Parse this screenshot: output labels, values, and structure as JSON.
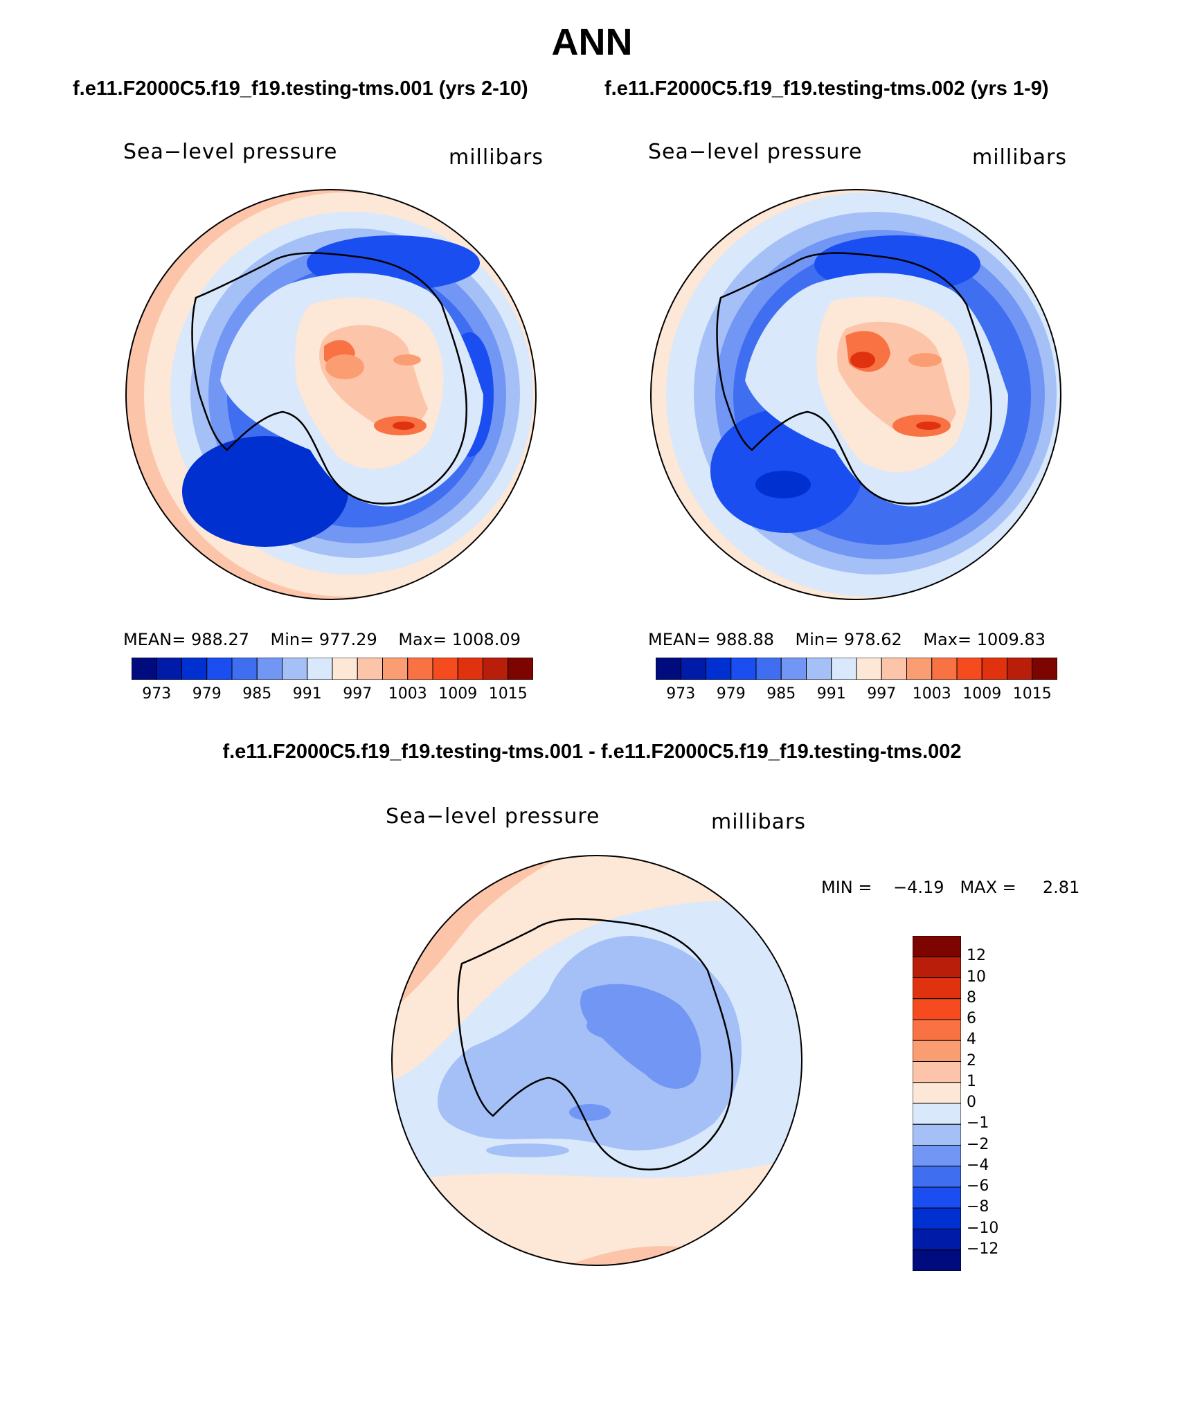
{
  "page_title": "ANN",
  "panel_a": {
    "case": "f.e11.F2000C5.f19_f19.testing-tms.001 (yrs 2-10)",
    "variable": "Sea−level pressure",
    "units": "millibars",
    "mean_label": "MEAN=",
    "mean_value": "988.27",
    "min_label": "Min=",
    "min_value": "977.29",
    "max_label": "Max=",
    "max_value": "1008.09"
  },
  "panel_b": {
    "case": "f.e11.F2000C5.f19_f19.testing-tms.002 (yrs 1-9)",
    "variable": "Sea−level pressure",
    "units": "millibars",
    "mean_label": "MEAN=",
    "mean_value": "988.88",
    "min_label": "Min=",
    "min_value": "978.62",
    "max_label": "Max=",
    "max_value": "1009.83"
  },
  "panel_diff": {
    "title": "f.e11.F2000C5.f19_f19.testing-tms.001 - f.e11.F2000C5.f19_f19.testing-tms.002",
    "variable": "Sea−level pressure",
    "units": "millibars",
    "min_label": "MIN =",
    "min_value": "−4.19",
    "max_label": "MAX =",
    "max_value": "2.81"
  },
  "colors": {
    "field_bar": [
      "#000c7d",
      "#001ba8",
      "#0030d0",
      "#1a4ef0",
      "#3f6ff0",
      "#7196f4",
      "#a4c0f7",
      "#d9e8fb",
      "#fde7d6",
      "#fcc5a9",
      "#fb9d72",
      "#f97244",
      "#f54b1f",
      "#e0320f",
      "#b81e0a",
      "#7d0500"
    ],
    "diff_bar": [
      "#7d0500",
      "#b81e0a",
      "#e0320f",
      "#f54b1f",
      "#f97244",
      "#fb9d72",
      "#fcc5a9",
      "#fde7d6",
      "#d9e8fb",
      "#a4c0f7",
      "#7196f4",
      "#3f6ff0",
      "#1a4ef0",
      "#0030d0",
      "#001ba8",
      "#000c7d"
    ]
  },
  "chart_data": [
    {
      "type": "heatmap",
      "projection": "south-polar-stereographic",
      "title": "Sea−level pressure",
      "units": "millibars",
      "mean": 988.27,
      "min": 977.29,
      "max": 1008.09,
      "contour_levels": [
        970,
        973,
        976,
        979,
        982,
        985,
        988,
        991,
        994,
        997,
        1000,
        1003,
        1006,
        1009,
        1012,
        1015
      ],
      "colorbar_ticks": [
        "973",
        "979",
        "985",
        "991",
        "997",
        "1003",
        "1009",
        "1015"
      ],
      "colorbar_orientation": "horizontal"
    },
    {
      "type": "heatmap",
      "projection": "south-polar-stereographic",
      "title": "Sea−level pressure",
      "units": "millibars",
      "mean": 988.88,
      "min": 978.62,
      "max": 1009.83,
      "contour_levels": [
        970,
        973,
        976,
        979,
        982,
        985,
        988,
        991,
        994,
        997,
        1000,
        1003,
        1006,
        1009,
        1012,
        1015
      ],
      "colorbar_ticks": [
        "973",
        "979",
        "985",
        "991",
        "997",
        "1003",
        "1009",
        "1015"
      ],
      "colorbar_orientation": "horizontal"
    },
    {
      "type": "heatmap",
      "projection": "south-polar-stereographic",
      "title": "Sea−level pressure",
      "units": "millibars",
      "min": -4.19,
      "max": 2.81,
      "contour_levels": [
        -12,
        -10,
        -8,
        -6,
        -4,
        -2,
        -1,
        0,
        1,
        2,
        4,
        6,
        8,
        10,
        12
      ],
      "colorbar_ticks": [
        "12",
        "10",
        "8",
        "6",
        "4",
        "2",
        "1",
        "0",
        "−1",
        "−2",
        "−4",
        "−6",
        "−8",
        "−10",
        "−12"
      ],
      "colorbar_orientation": "vertical"
    }
  ]
}
